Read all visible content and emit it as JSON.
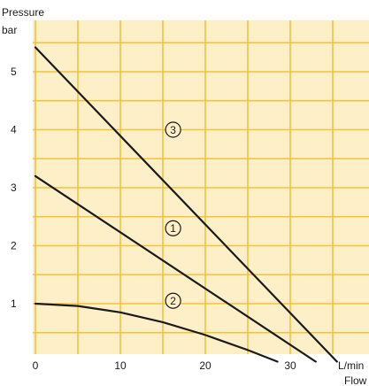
{
  "chart_data": {
    "type": "line",
    "ylabel_line1": "Pressure",
    "ylabel_line2": "bar",
    "xlabel_unit": "L/min",
    "xlabel": "Flow",
    "xlim": [
      0,
      36
    ],
    "ylim": [
      0,
      5.8
    ],
    "x_ticks": [
      0,
      10,
      20,
      30
    ],
    "y_ticks": [
      1,
      2,
      3,
      4,
      5
    ],
    "grid": true,
    "colors": {
      "background": "#fdf0c8",
      "grid": "#f5c33a",
      "line": "#1a1a1a"
    },
    "series": [
      {
        "marker": "3",
        "x": [
          0,
          35.5
        ],
        "y": [
          5.42,
          0
        ]
      },
      {
        "marker": "1",
        "x": [
          0,
          33
        ],
        "y": [
          3.2,
          0
        ]
      },
      {
        "marker": "2",
        "x": [
          0,
          5,
          10,
          15,
          20,
          25,
          28.5
        ],
        "y": [
          1.0,
          0.96,
          0.85,
          0.68,
          0.46,
          0.2,
          0
        ]
      }
    ],
    "markers": [
      {
        "label": "3",
        "x": 12.2,
        "y": 4.0
      },
      {
        "label": "1",
        "x": 12.2,
        "y": 2.3
      },
      {
        "label": "2",
        "x": 12.2,
        "y": 1.05
      }
    ]
  }
}
